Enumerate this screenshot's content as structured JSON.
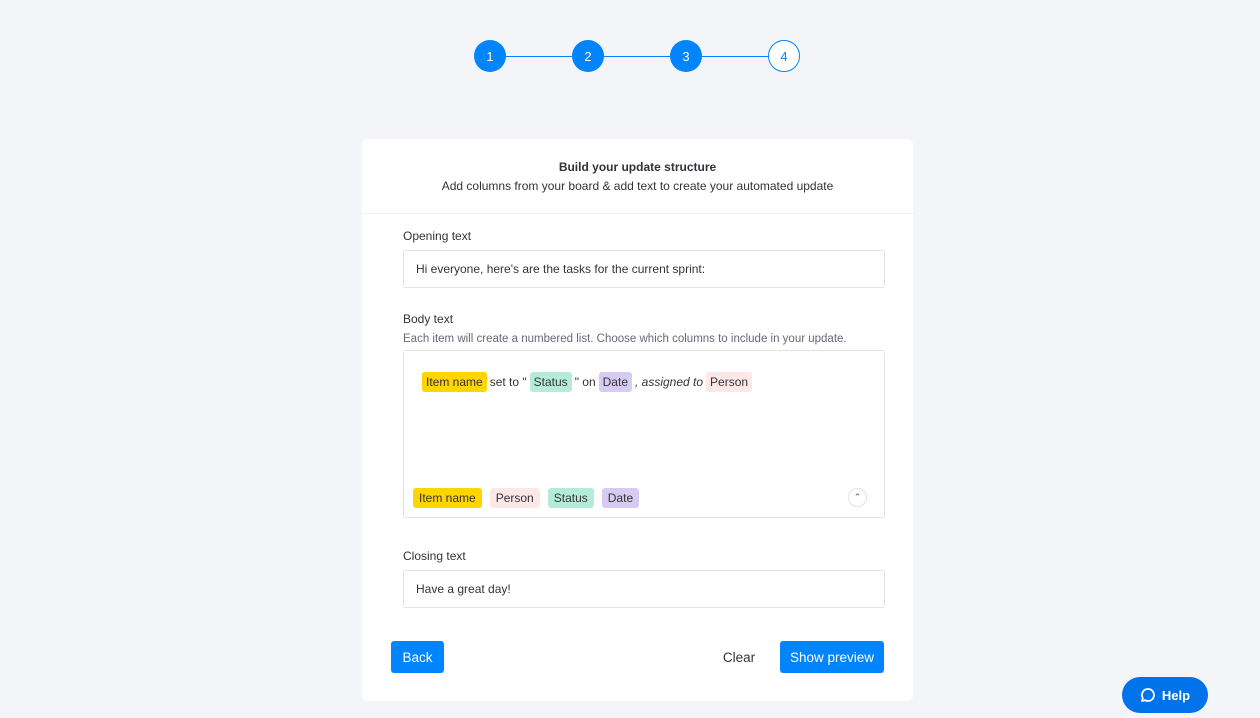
{
  "stepper": {
    "steps": [
      "1",
      "2",
      "3",
      "4"
    ],
    "current": 3
  },
  "header": {
    "title": "Build your update structure",
    "subtitle": "Add columns from your board & add text to create your automated update"
  },
  "opening": {
    "label": "Opening text",
    "value": "Hi everyone, here's are the tasks for the current sprint:"
  },
  "body": {
    "label": "Body text",
    "hint": "Each item will create a numbered list. Choose which columns to include in your update.",
    "template": {
      "t1": "Item name",
      "s1": "set to \"",
      "t2": "Status",
      "s2": "\" on",
      "t3": "Date",
      "s3": ", assigned to",
      "t4": "Person"
    },
    "chips": [
      "Item name",
      "Person",
      "Status",
      "Date"
    ]
  },
  "closing": {
    "label": "Closing text",
    "value": "Have a great day!"
  },
  "buttons": {
    "back": "Back",
    "clear": "Clear",
    "preview": "Show preview",
    "help": "Help"
  },
  "colors": {
    "primary": "#0085ff",
    "item_name": "#ffd500",
    "person": "#fde8e8",
    "status": "#b5ecd9",
    "date": "#d6ccf3"
  }
}
